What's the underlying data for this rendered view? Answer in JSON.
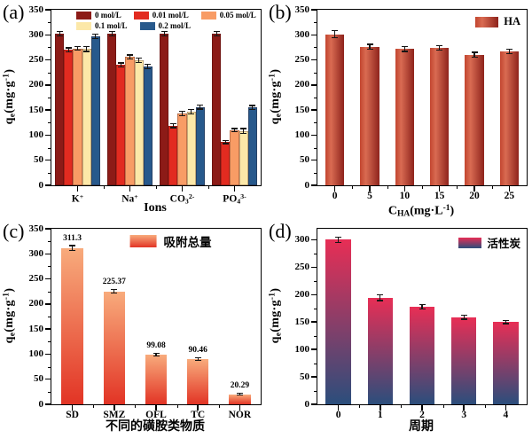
{
  "figure": {
    "background": "#ffffff",
    "panels": 4
  },
  "chart_data": [
    {
      "id": "a",
      "type": "bar",
      "panel_label": "(a)",
      "ylabel": "q<sub>e</sub>(mg·g<sup>-1</sup>)",
      "xlabel": "Ions",
      "ylim": [
        0,
        350
      ],
      "yticks": [
        0,
        50,
        100,
        150,
        200,
        250,
        300,
        350
      ],
      "grid": false,
      "categories": [
        "K<sup>+</sup>",
        "Na<sup>+</sup>",
        "CO<sub>3</sub><sup>2-</sup>",
        "PO<sub>4</sub><sup>3-</sup>"
      ],
      "bar_group_ratio": 0.85,
      "bar_border": true,
      "series": [
        {
          "name": "0 mol/L",
          "fill": {
            "type": "solid",
            "stops": [
              "#8c1b17"
            ]
          },
          "values": [
            302,
            302,
            302,
            302
          ],
          "errors": [
            4,
            4,
            4,
            4
          ]
        },
        {
          "name": "0.01 mol/L",
          "fill": {
            "type": "solid",
            "stops": [
              "#e22b20"
            ]
          },
          "values": [
            270,
            240,
            119,
            86
          ],
          "errors": [
            4,
            4,
            4,
            3
          ]
        },
        {
          "name": "0.05 mol/L",
          "fill": {
            "type": "solid",
            "stops": [
              "#f89c65"
            ]
          },
          "values": [
            273,
            256,
            143,
            110
          ],
          "errors": [
            3,
            4,
            4,
            3
          ]
        },
        {
          "name": "0.1 mol/L",
          "fill": {
            "type": "solid",
            "stops": [
              "#fce8a8"
            ]
          },
          "values": [
            272,
            249,
            147,
            108
          ],
          "errors": [
            5,
            4,
            4,
            5
          ]
        },
        {
          "name": "0.2 mol/L",
          "fill": {
            "type": "solid",
            "stops": [
              "#27598c"
            ]
          },
          "values": [
            297,
            237,
            156,
            155
          ],
          "errors": [
            4,
            4,
            4,
            4
          ]
        }
      ],
      "legend": {
        "position": "top-left-rows",
        "rows": [
          3,
          2
        ]
      }
    },
    {
      "id": "b",
      "type": "bar",
      "panel_label": "(b)",
      "ylabel": "q<sub>e</sub>(mg·g<sup>-1</sup>)",
      "xlabel": "C<sub>HA</sub>(mg·L<sup>-1</sup>)",
      "ylim": [
        0,
        350
      ],
      "yticks": [
        0,
        50,
        100,
        150,
        200,
        250,
        300,
        350
      ],
      "grid": false,
      "categories": [
        "0",
        "5",
        "10",
        "15",
        "20",
        "25"
      ],
      "bar_group_ratio": 0.55,
      "bar_border": false,
      "series": [
        {
          "name": "HA",
          "fill": {
            "type": "gradient-h",
            "stops": [
              "#c2452f",
              "#d96b52 30%",
              "#8e231c"
            ]
          },
          "values": [
            301,
            276,
            272,
            274,
            260,
            267
          ],
          "errors": [
            7,
            5,
            5,
            5,
            5,
            5
          ]
        }
      ],
      "legend": {
        "position": "top-right",
        "rows": [
          1
        ]
      }
    },
    {
      "id": "c",
      "type": "bar",
      "panel_label": "(c)",
      "ylabel": "q<sub>e</sub>(mg·g<sup>-1</sup>)",
      "xlabel": "不同的磺胺类物质",
      "ylim": [
        0,
        350
      ],
      "yticks": [
        0,
        50,
        100,
        150,
        200,
        250,
        300,
        350
      ],
      "grid": false,
      "categories": [
        "SD",
        "SMZ",
        "OFL",
        "TC",
        "NOR"
      ],
      "bar_group_ratio": 0.52,
      "bar_border": false,
      "series": [
        {
          "name": "吸附总量",
          "fill": {
            "type": "gradient-v",
            "stops": [
              "#f8ab7c",
              "#e23425"
            ]
          },
          "values": [
            311.3,
            225.37,
            99.08,
            90.46,
            20.29
          ],
          "errors": [
            5,
            4,
            3,
            3,
            2
          ],
          "value_labels": [
            "311.3",
            "225.37",
            "99.08",
            "90.46",
            "20.29"
          ]
        }
      ],
      "legend": {
        "position": "top-center",
        "rows": [
          1
        ]
      }
    },
    {
      "id": "d",
      "type": "bar",
      "panel_label": "(d)",
      "ylabel": "q<sub>e</sub>(mg·g<sup>-1</sup>)",
      "xlabel": "周期",
      "ylim": [
        0,
        320
      ],
      "yticks": [
        0,
        50,
        100,
        150,
        200,
        250,
        300
      ],
      "grid": false,
      "categories": [
        "0",
        "1",
        "2",
        "3",
        "4"
      ],
      "bar_group_ratio": 0.6,
      "bar_border": false,
      "series": [
        {
          "name": "活性炭",
          "fill": {
            "type": "gradient-v",
            "stops": [
              "#e82e55",
              "#2b4e7c"
            ]
          },
          "values": [
            300,
            194,
            178,
            159,
            150
          ],
          "errors": [
            5,
            5,
            4,
            4,
            3
          ]
        }
      ],
      "legend": {
        "position": "top-right",
        "rows": [
          1
        ]
      }
    }
  ]
}
